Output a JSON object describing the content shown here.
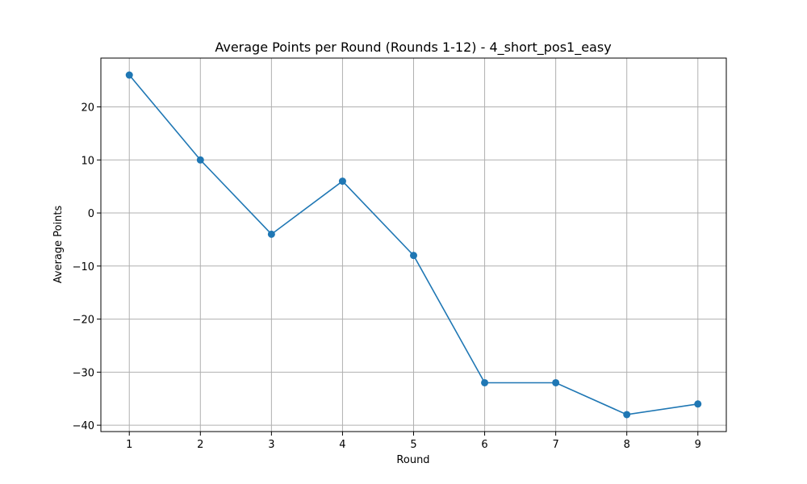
{
  "chart_data": {
    "type": "line",
    "title": "Average Points per Round (Rounds 1-12) - 4_short_pos1_easy",
    "xlabel": "Round",
    "ylabel": "Average Points",
    "x": [
      1,
      2,
      3,
      4,
      5,
      6,
      7,
      8,
      9
    ],
    "xlim": [
      0.6,
      9.4
    ],
    "ylim": [
      -41.2,
      29.2
    ],
    "xticks": [
      1,
      2,
      3,
      4,
      5,
      6,
      7,
      8,
      9
    ],
    "yticks": [
      -40,
      -30,
      -20,
      -10,
      0,
      10,
      20
    ],
    "grid": true,
    "series": [
      {
        "color": "#1f77b4",
        "values": [
          26,
          10,
          -4,
          6,
          -8,
          -32,
          -32,
          -38,
          -36
        ]
      }
    ]
  }
}
